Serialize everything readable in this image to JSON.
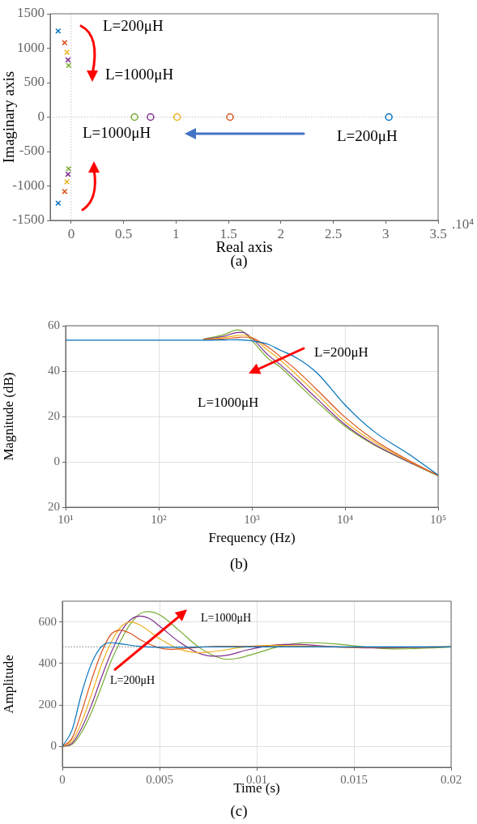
{
  "chart_data": [
    {
      "type": "scatter",
      "xlabel": "Real axis",
      "ylabel": "Imaginary axis",
      "annotations": [
        "L=200μH",
        "L=1000μH",
        "L=1000μH",
        "L=200μH",
        ".10⁴",
        "(a)"
      ],
      "xlim": [
        -0.2,
        3.5
      ],
      "xticks": [
        0,
        0.5,
        1,
        1.5,
        2,
        2.5,
        3,
        3.5
      ],
      "ylim": [
        -1500,
        1500
      ],
      "yticks": [
        -1500,
        -1000,
        -500,
        0,
        500,
        1000,
        1500
      ],
      "ref_lines": [
        {
          "axis": "x",
          "value": 0,
          "color": "#c8c8c8",
          "line_style": "dotted"
        },
        {
          "axis": "y",
          "value": 0,
          "color": "#c8c8c8",
          "line_style": "dotted"
        }
      ],
      "series": [
        {
          "color": "#0072bd",
          "marker": "cross",
          "x": [
            -0.124,
            -0.124
          ],
          "values": [
            1250,
            -1250
          ]
        },
        {
          "color": "#d95319",
          "marker": "cross",
          "x": [
            -0.062,
            -0.062
          ],
          "values": [
            1080,
            -1080
          ]
        },
        {
          "color": "#edb120",
          "marker": "cross",
          "x": [
            -0.041,
            -0.041
          ],
          "values": [
            940,
            -940
          ]
        },
        {
          "color": "#7e2f8e",
          "marker": "cross",
          "x": [
            -0.03,
            -0.03
          ],
          "values": [
            830,
            -830
          ]
        },
        {
          "color": "#77ac30",
          "marker": "cross",
          "x": [
            -0.024,
            -0.024
          ],
          "values": [
            750,
            -750
          ]
        },
        {
          "color": "#0072bd",
          "marker": "circle",
          "x": [
            3.03
          ],
          "values": [
            0
          ]
        },
        {
          "color": "#d95319",
          "marker": "circle",
          "x": [
            1.515
          ],
          "values": [
            0
          ]
        },
        {
          "color": "#edb120",
          "marker": "circle",
          "x": [
            1.01
          ],
          "values": [
            0
          ]
        },
        {
          "color": "#7e2f8e",
          "marker": "circle",
          "x": [
            0.757
          ],
          "values": [
            0
          ]
        },
        {
          "color": "#77ac30",
          "marker": "circle",
          "x": [
            0.604
          ],
          "values": [
            0
          ]
        }
      ]
    },
    {
      "type": "line",
      "xlabel": "Frequency (Hz)",
      "ylabel": "Magnitude (dB)",
      "annotations": [
        "L=200μH",
        "L=1000μH",
        "(b)"
      ],
      "log": "x",
      "grid": true,
      "x": [
        10,
        100,
        300,
        500,
        700,
        800,
        1000,
        1500,
        2000,
        3000,
        5000,
        10000,
        20000,
        50000,
        100000
      ],
      "xlim": [
        10,
        100000
      ],
      "xticks": [
        {
          "value": 10,
          "label": "10¹"
        },
        {
          "value": 100,
          "label": "10²"
        },
        {
          "value": 1000,
          "label": "10³"
        },
        {
          "value": 10000,
          "label": "10⁴"
        },
        {
          "value": 100000,
          "label": "10⁵"
        }
      ],
      "ylim": [
        -20,
        60
      ],
      "yticks": [
        {
          "value": -20,
          "label": "20"
        },
        0,
        20,
        40,
        60
      ],
      "series": [
        {
          "color": "#0072bd",
          "values": [
            53.6,
            53.6,
            53.6,
            53.7,
            53.8,
            53.7,
            53.3,
            51.8,
            49.3,
            45.9,
            39.2,
            25.1,
            13.7,
            3,
            -5.8
          ]
        },
        {
          "color": "#d95319",
          "values": [
            null,
            null,
            53.8,
            54.2,
            54.8,
            55,
            54.6,
            50.5,
            46.5,
            40.5,
            31.8,
            19.7,
            10,
            0.3,
            -6
          ]
        },
        {
          "color": "#edb120",
          "values": [
            null,
            null,
            53.9,
            54.7,
            55.7,
            55.9,
            54.8,
            49,
            45,
            38.5,
            29.8,
            17.7,
            9,
            0,
            -6
          ]
        },
        {
          "color": "#7e2f8e",
          "values": [
            null,
            null,
            54,
            55.3,
            57,
            57,
            54.5,
            47,
            43,
            36.5,
            27.8,
            16.4,
            8,
            -0.3,
            -6
          ]
        },
        {
          "color": "#77ac30",
          "values": [
            null,
            null,
            54.1,
            56,
            58.2,
            57.5,
            53.5,
            45.5,
            41.9,
            35,
            26.4,
            15.7,
            7.7,
            -0.4,
            -6.2
          ]
        }
      ]
    },
    {
      "type": "line",
      "xlabel": "Time (s)",
      "ylabel": "Amplitude",
      "annotations": [
        "L=1000μH",
        "L=200μH",
        "(c)"
      ],
      "grid": true,
      "xlim": [
        0,
        0.02
      ],
      "xticks": [
        0,
        0.005,
        0.01,
        0.015,
        0.02
      ],
      "ylim": [
        -100,
        700
      ],
      "yticks": [
        0,
        200,
        400,
        600
      ],
      "ref_lines": [
        {
          "axis": "y",
          "value": 480,
          "color": "#808080",
          "line_style": "dotted"
        }
      ],
      "series": [
        {
          "color": "#0072bd",
          "x": [
            0,
            0.0005,
            0.001,
            0.0015,
            0.002,
            0.0025,
            0.003,
            0.004,
            0.005,
            0.006,
            0.008,
            0.01,
            0.02
          ],
          "values": [
            0,
            80,
            260,
            400,
            480,
            500,
            495,
            482,
            478,
            478,
            480,
            480,
            480
          ]
        },
        {
          "color": "#d95319",
          "x": [
            0,
            0.0005,
            0.001,
            0.0015,
            0.002,
            0.0025,
            0.003,
            0.0035,
            0.004,
            0.005,
            0.0055,
            0.006,
            0.007,
            0.008,
            0.01,
            0.012,
            0.015,
            0.02
          ],
          "values": [
            0,
            40,
            170,
            320,
            450,
            540,
            560,
            545,
            515,
            475,
            468,
            470,
            478,
            482,
            482,
            481,
            479,
            480
          ]
        },
        {
          "color": "#edb120",
          "x": [
            0,
            0.0005,
            0.001,
            0.0015,
            0.002,
            0.0025,
            0.003,
            0.0035,
            0.004,
            0.005,
            0.006,
            0.007,
            0.008,
            0.009,
            0.01,
            0.011,
            0.013,
            0.015,
            0.02
          ],
          "values": [
            0,
            25,
            120,
            250,
            390,
            500,
            575,
            600,
            585,
            520,
            470,
            452,
            460,
            475,
            485,
            488,
            482,
            478,
            480
          ]
        },
        {
          "color": "#7e2f8e",
          "x": [
            0,
            0.0005,
            0.001,
            0.0015,
            0.002,
            0.0025,
            0.003,
            0.0035,
            0.004,
            0.0045,
            0.005,
            0.006,
            0.007,
            0.0078,
            0.0085,
            0.0095,
            0.011,
            0.012,
            0.014,
            0.016,
            0.02
          ],
          "values": [
            0,
            15,
            90,
            200,
            330,
            450,
            550,
            610,
            628,
            615,
            580,
            505,
            450,
            435,
            440,
            465,
            490,
            493,
            480,
            475,
            480
          ]
        },
        {
          "color": "#77ac30",
          "x": [
            0,
            0.0005,
            0.001,
            0.0015,
            0.002,
            0.0025,
            0.003,
            0.0035,
            0.004,
            0.0044,
            0.005,
            0.006,
            0.007,
            0.008,
            0.0085,
            0.009,
            0.01,
            0.011,
            0.0125,
            0.014,
            0.015,
            0.017,
            0.019,
            0.02
          ],
          "values": [
            0,
            10,
            70,
            165,
            285,
            410,
            510,
            590,
            640,
            650,
            635,
            560,
            480,
            430,
            420,
            425,
            450,
            478,
            500,
            495,
            485,
            470,
            475,
            480
          ]
        }
      ]
    }
  ]
}
